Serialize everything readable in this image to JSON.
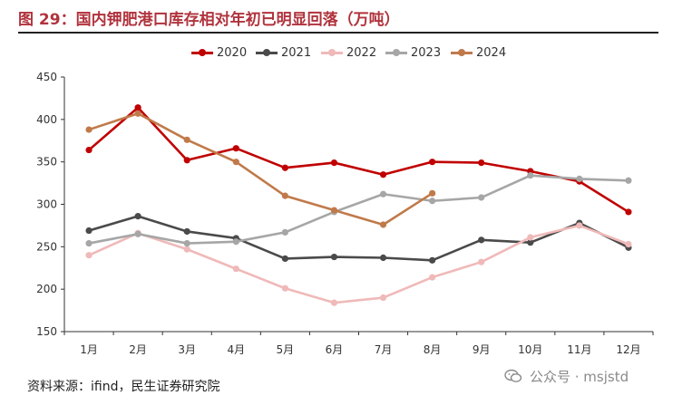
{
  "figure": {
    "title": "图 29：国内钾肥港口库存相对年初已明显回落（万吨）",
    "source": "资料来源：ifind，民生证券研究院"
  },
  "watermark": {
    "text": "公众号 · msjstd",
    "icon": "wechat-icon",
    "color": "#8a8a8a"
  },
  "colors": {
    "title": "#b0333d",
    "axis": "#333333",
    "text": "#333333"
  },
  "chart_data": {
    "type": "line",
    "title": "国内钾肥港口库存相对年初已明显回落（万吨）",
    "xlabel": "",
    "ylabel": "",
    "ylim": [
      150,
      450
    ],
    "yticks": [
      150,
      200,
      250,
      300,
      350,
      400,
      450
    ],
    "grid": false,
    "legend_position": "top-center",
    "categories": [
      "1月",
      "2月",
      "3月",
      "4月",
      "5月",
      "6月",
      "7月",
      "8月",
      "9月",
      "10月",
      "11月",
      "12月"
    ],
    "series": [
      {
        "name": "2020",
        "color": "#c00000",
        "values": [
          364,
          414,
          352,
          366,
          343,
          349,
          335,
          350,
          349,
          339,
          327,
          291
        ]
      },
      {
        "name": "2021",
        "color": "#4a4a4a",
        "values": [
          269,
          286,
          268,
          260,
          236,
          238,
          237,
          234,
          258,
          255,
          278,
          249
        ]
      },
      {
        "name": "2022",
        "color": "#f0b9b9",
        "values": [
          240,
          266,
          247,
          224,
          201,
          184,
          190,
          214,
          232,
          261,
          275,
          253
        ]
      },
      {
        "name": "2023",
        "color": "#a6a6a6",
        "values": [
          254,
          265,
          254,
          256,
          267,
          291,
          312,
          304,
          308,
          334,
          330,
          328
        ]
      },
      {
        "name": "2024",
        "color": "#c07a4a",
        "values": [
          388,
          407,
          376,
          350,
          310,
          293,
          276,
          313,
          null,
          null,
          null,
          null
        ]
      }
    ]
  }
}
